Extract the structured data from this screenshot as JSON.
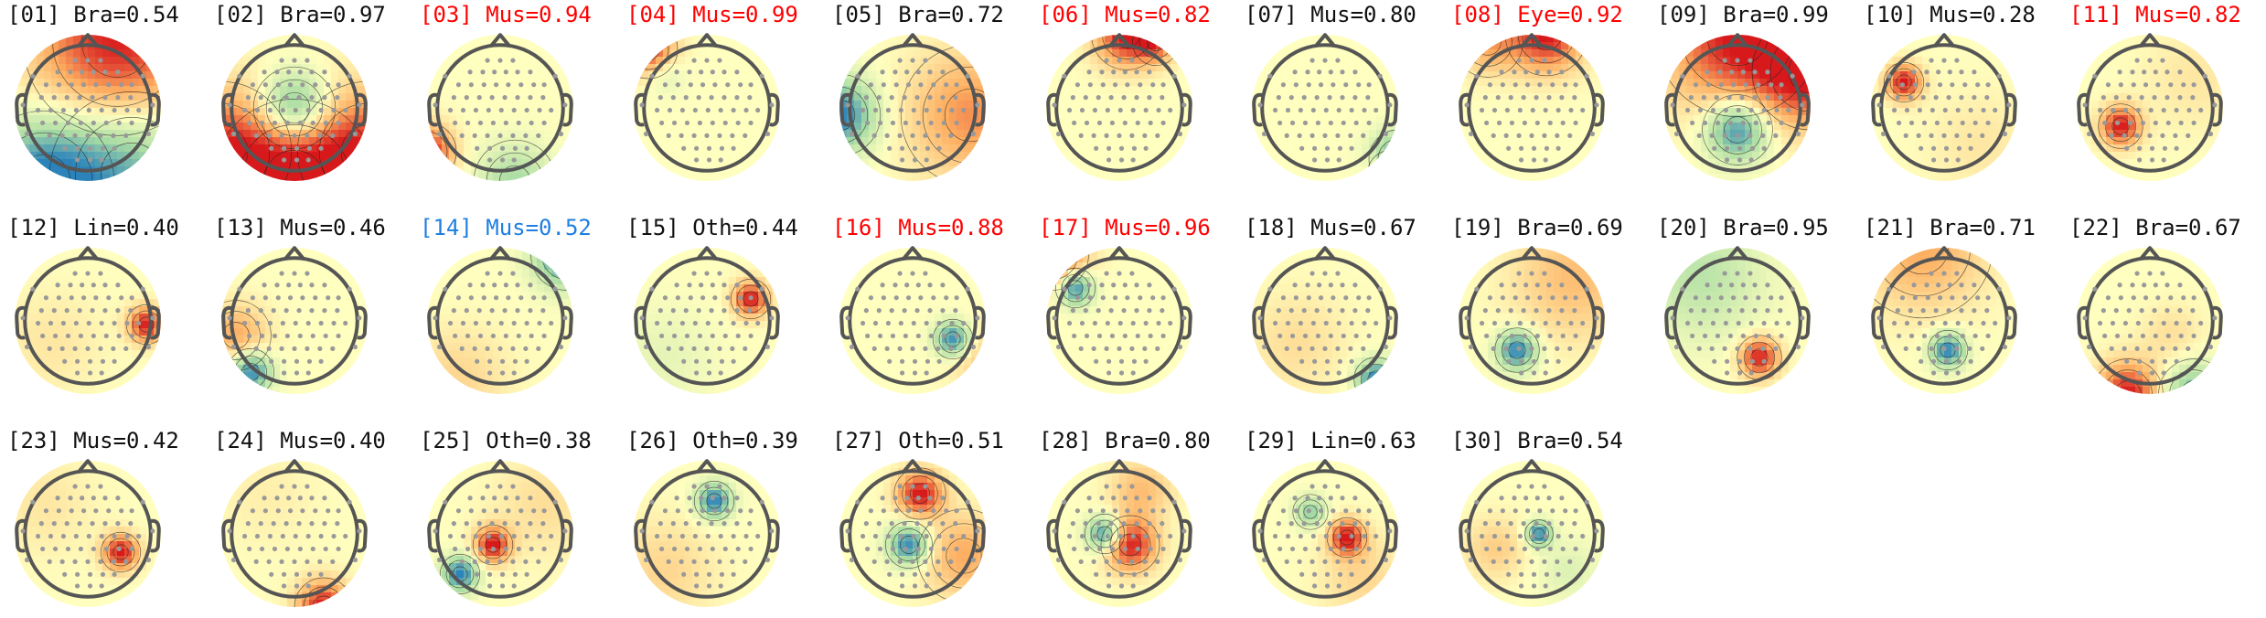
{
  "colors": {
    "normal": "#111111",
    "red": "#ff0000",
    "blue": "#1f7fe0",
    "head_outline": "#555555",
    "sensor": "#999999",
    "contour": "#222222",
    "map_positive": "#d7191c",
    "map_neutral": "#ffffbf",
    "map_negative": "#2b83ba"
  },
  "components": [
    {
      "label": "[01] Bra=0.54",
      "color": "normal",
      "icon": "topomap-icon"
    },
    {
      "label": "[02] Bra=0.97",
      "color": "normal",
      "icon": "topomap-icon"
    },
    {
      "label": "[03] Mus=0.94",
      "color": "red",
      "icon": "topomap-icon"
    },
    {
      "label": "[04] Mus=0.99",
      "color": "red",
      "icon": "topomap-icon"
    },
    {
      "label": "[05] Bra=0.72",
      "color": "normal",
      "icon": "topomap-icon"
    },
    {
      "label": "[06] Mus=0.82",
      "color": "red",
      "icon": "topomap-icon"
    },
    {
      "label": "[07] Mus=0.80",
      "color": "normal",
      "icon": "topomap-icon"
    },
    {
      "label": "[08] Eye=0.92",
      "color": "red",
      "icon": "topomap-icon"
    },
    {
      "label": "[09] Bra=0.99",
      "color": "normal",
      "icon": "topomap-icon"
    },
    {
      "label": "[10] Mus=0.28",
      "color": "normal",
      "icon": "topomap-icon"
    },
    {
      "label": "[11] Mus=0.82",
      "color": "red",
      "icon": "topomap-icon"
    },
    {
      "label": "[12] Lin=0.40",
      "color": "normal",
      "icon": "topomap-icon"
    },
    {
      "label": "[13] Mus=0.46",
      "color": "normal",
      "icon": "topomap-icon"
    },
    {
      "label": "[14] Mus=0.52",
      "color": "blue",
      "icon": "topomap-icon"
    },
    {
      "label": "[15] Oth=0.44",
      "color": "normal",
      "icon": "topomap-icon"
    },
    {
      "label": "[16] Mus=0.88",
      "color": "red",
      "icon": "topomap-icon"
    },
    {
      "label": "[17] Mus=0.96",
      "color": "red",
      "icon": "topomap-icon"
    },
    {
      "label": "[18] Mus=0.67",
      "color": "normal",
      "icon": "topomap-icon"
    },
    {
      "label": "[19] Bra=0.69",
      "color": "normal",
      "icon": "topomap-icon"
    },
    {
      "label": "[20] Bra=0.95",
      "color": "normal",
      "icon": "topomap-icon"
    },
    {
      "label": "[21] Bra=0.71",
      "color": "normal",
      "icon": "topomap-icon"
    },
    {
      "label": "[22] Bra=0.67",
      "color": "normal",
      "icon": "topomap-icon"
    },
    {
      "label": "[23] Mus=0.42",
      "color": "normal",
      "icon": "topomap-icon"
    },
    {
      "label": "[24] Mus=0.40",
      "color": "normal",
      "icon": "topomap-icon"
    },
    {
      "label": "[25] Oth=0.38",
      "color": "normal",
      "icon": "topomap-icon"
    },
    {
      "label": "[26] Oth=0.39",
      "color": "normal",
      "icon": "topomap-icon"
    },
    {
      "label": "[27] Oth=0.51",
      "color": "normal",
      "icon": "topomap-icon"
    },
    {
      "label": "[28] Bra=0.80",
      "color": "normal",
      "icon": "topomap-icon"
    },
    {
      "label": "[29] Lin=0.63",
      "color": "normal",
      "icon": "topomap-icon"
    },
    {
      "label": "[30] Bra=0.54",
      "color": "normal",
      "icon": "topomap-icon"
    }
  ]
}
